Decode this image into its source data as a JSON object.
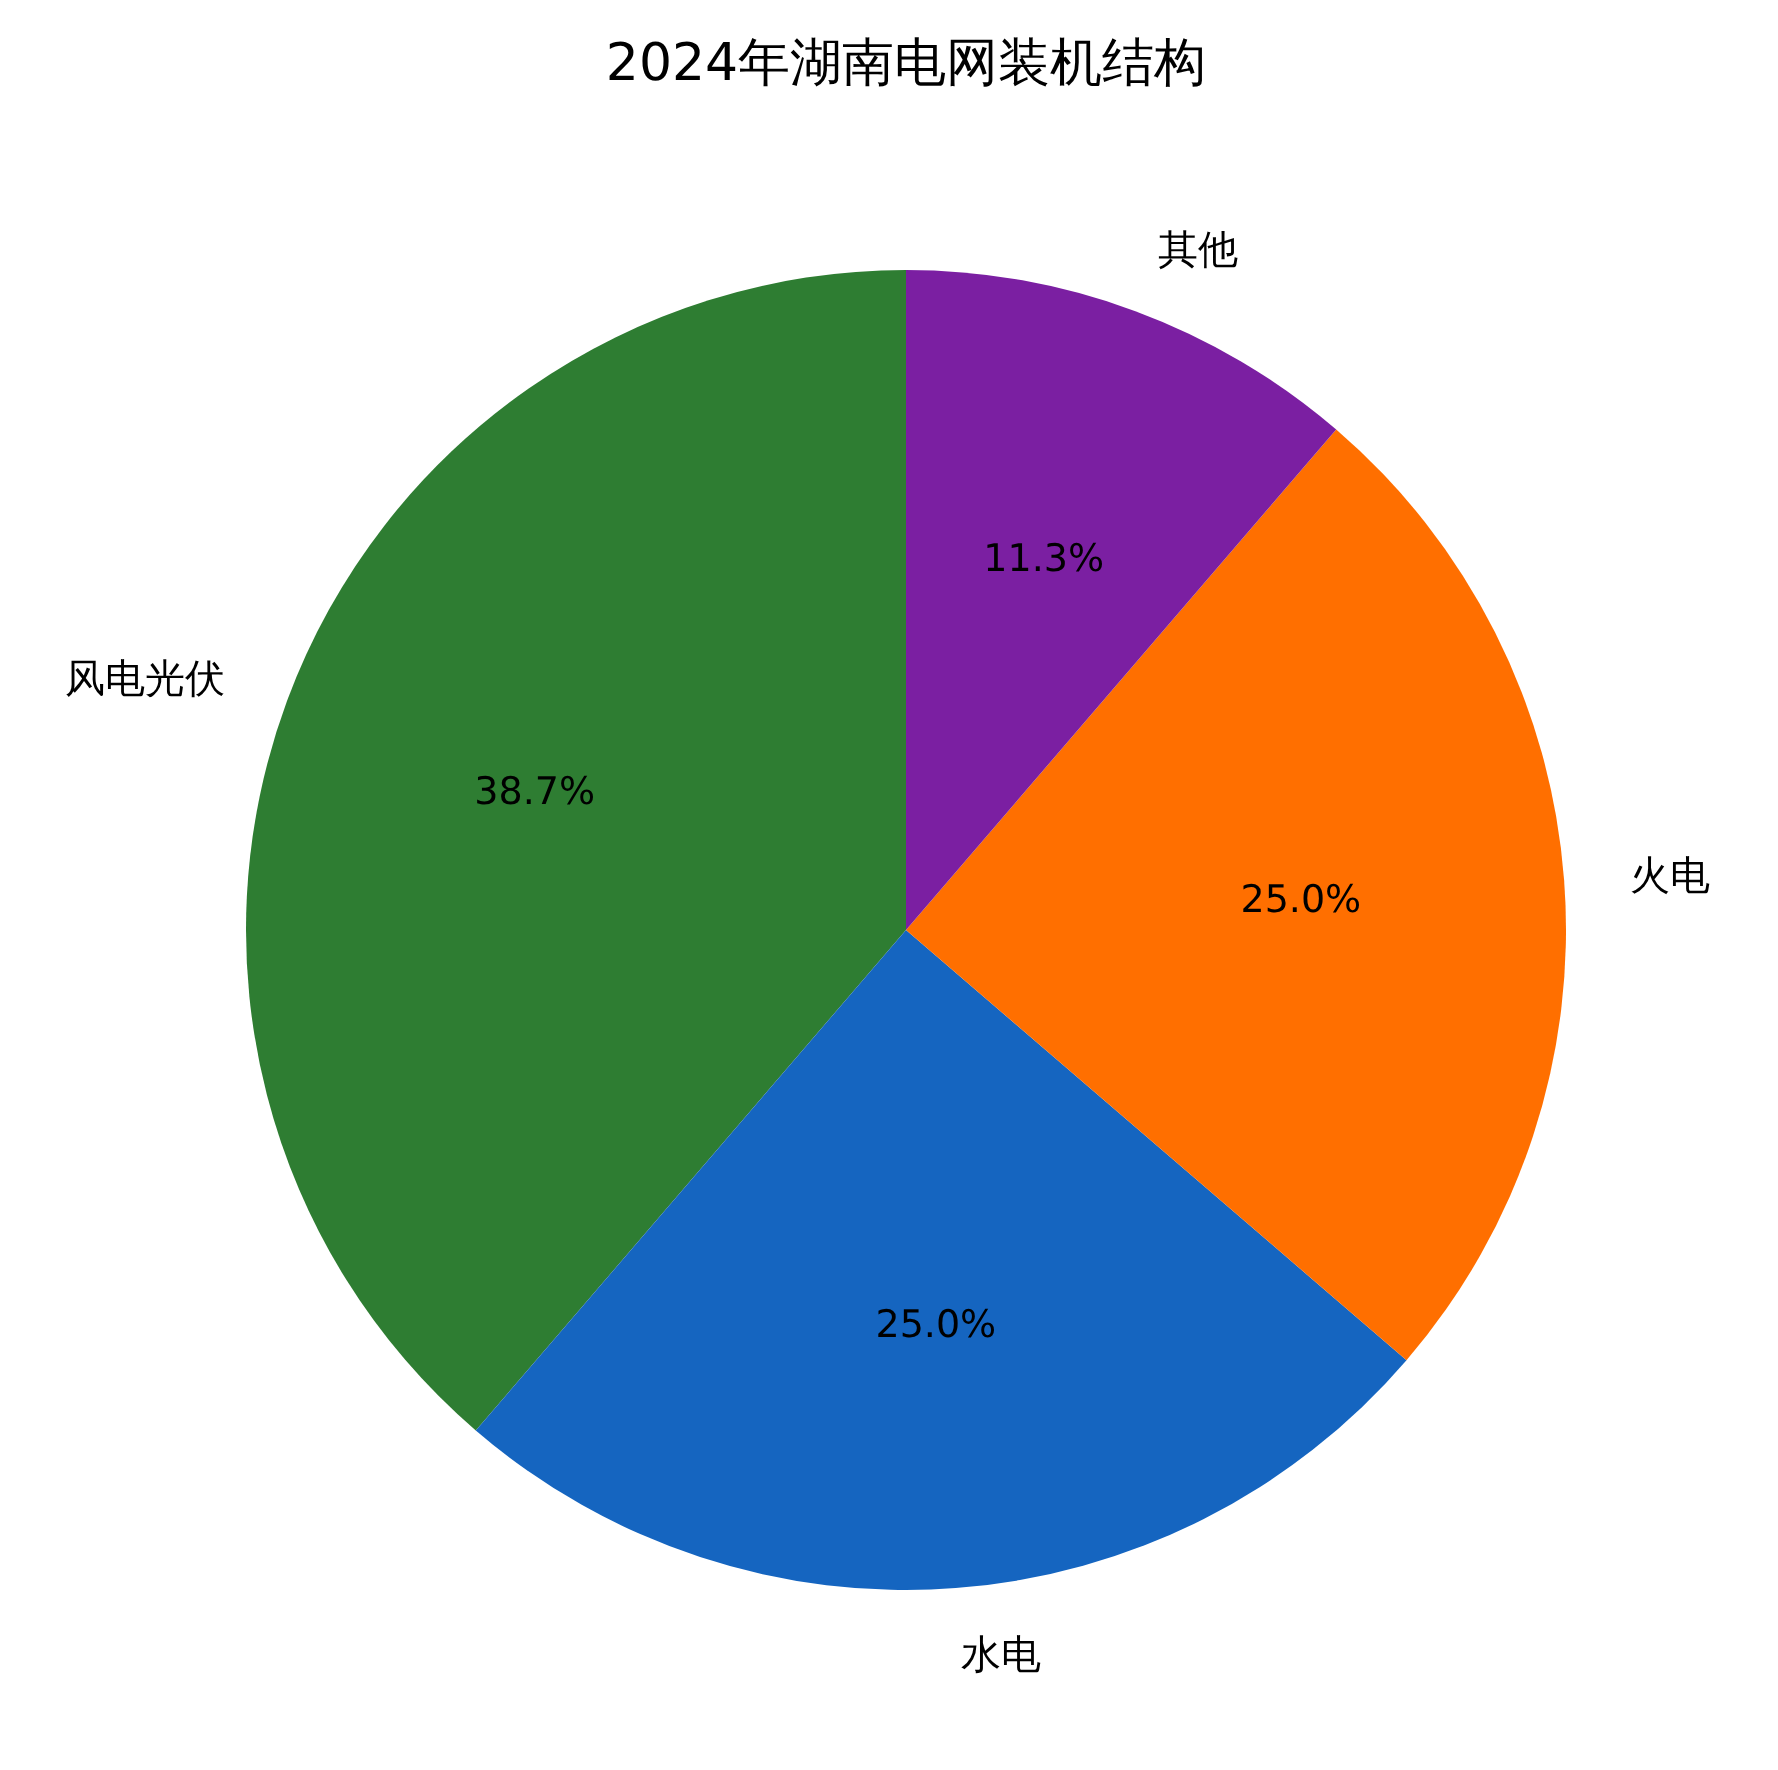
{
  "chart_data": {
    "type": "pie",
    "title": "2024年湖南电网装机结构",
    "categories": [
      "风电光伏",
      "水电",
      "火电",
      "其他"
    ],
    "values": [
      38.7,
      25.0,
      25.0,
      11.3
    ],
    "colors": [
      "#2e7d32",
      "#1565c0",
      "#ff6f00",
      "#7b1fa2"
    ],
    "value_labels": [
      "38.7%",
      "25.0%",
      "25.0%",
      "11.3%"
    ]
  }
}
